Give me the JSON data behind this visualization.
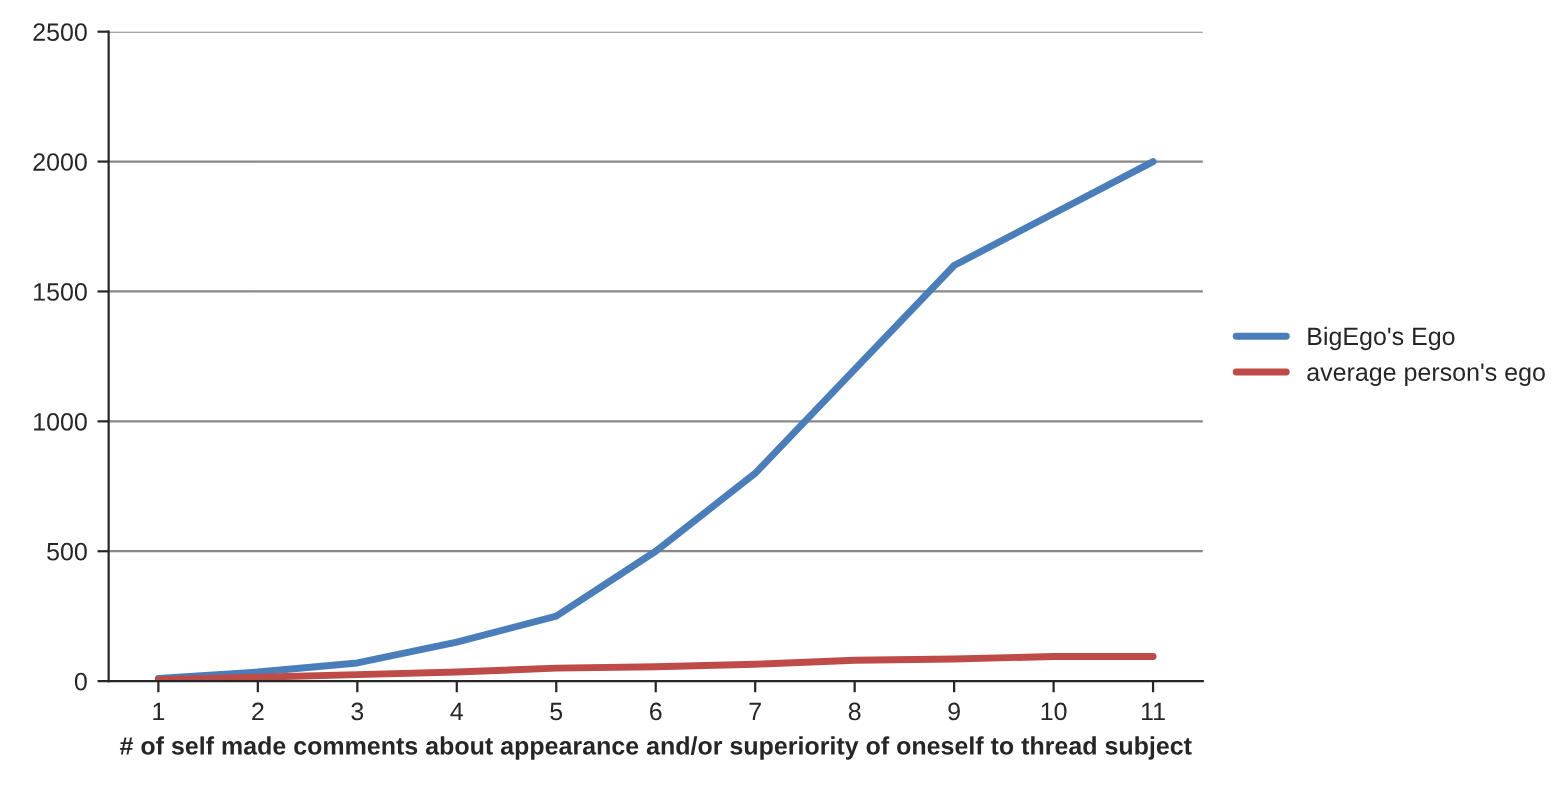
{
  "chart_data": {
    "type": "line",
    "xlabel": "# of self made comments about appearance and/or superiority of oneself to thread subject",
    "categories": [
      "1",
      "2",
      "3",
      "4",
      "5",
      "6",
      "7",
      "8",
      "9",
      "10",
      "11"
    ],
    "series": [
      {
        "name": "BigEgo's Ego",
        "color": "#4a7ebb",
        "values": [
          10,
          35,
          70,
          150,
          250,
          500,
          800,
          1200,
          1600,
          1800,
          2000
        ]
      },
      {
        "name": "average person's ego",
        "color": "#be4b48",
        "values": [
          5,
          15,
          25,
          35,
          50,
          55,
          65,
          80,
          85,
          95,
          95
        ]
      }
    ],
    "ylim": [
      0,
      2500
    ],
    "yticks": [
      0,
      500,
      1000,
      1500,
      2000,
      2500
    ],
    "grid": "y",
    "legend": "right",
    "line_style": "solid"
  }
}
